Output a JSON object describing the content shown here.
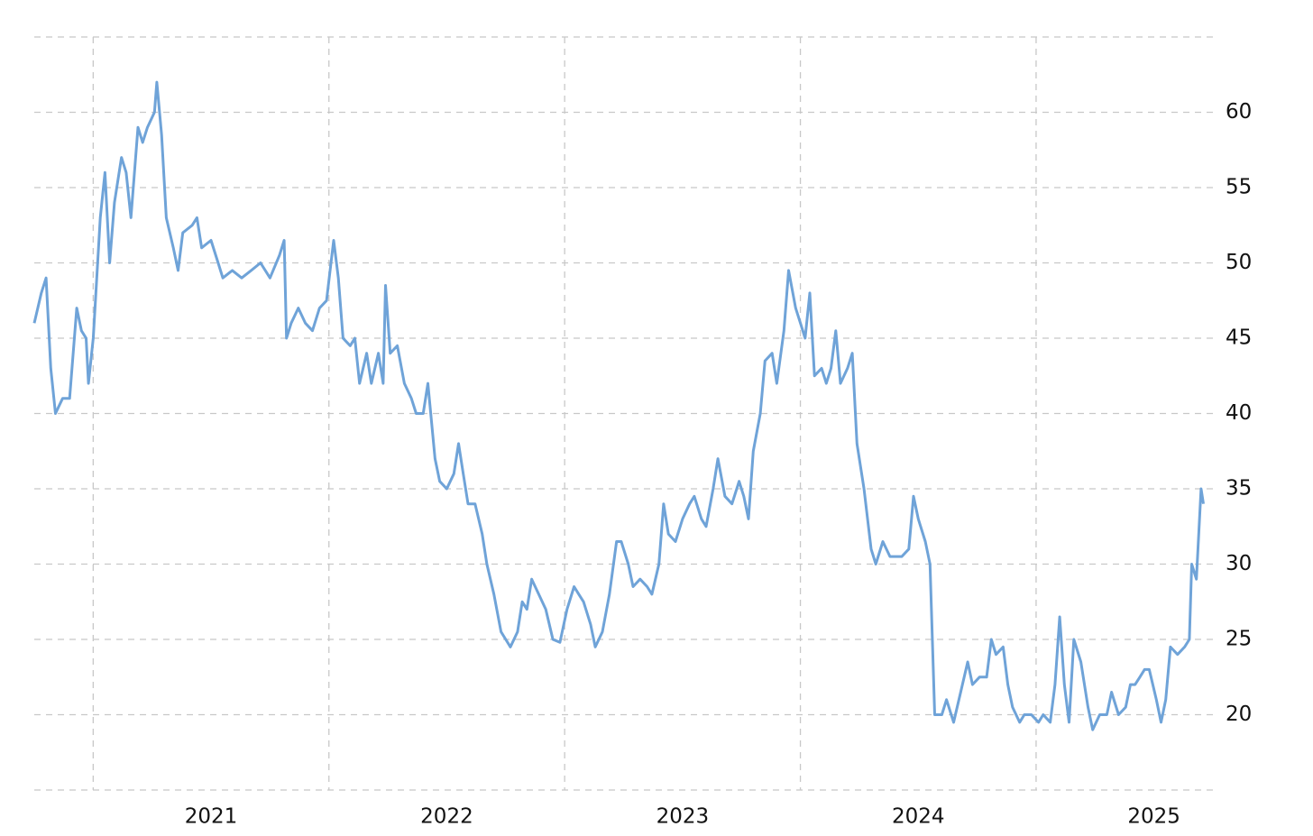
{
  "chart_data": {
    "type": "line",
    "x": [
      2020.75,
      2020.78,
      2020.8,
      2020.82,
      2020.84,
      2020.87,
      2020.9,
      2020.93,
      2020.95,
      2020.97,
      2020.98,
      2021.0,
      2021.03,
      2021.05,
      2021.07,
      2021.09,
      2021.12,
      2021.14,
      2021.16,
      2021.19,
      2021.21,
      2021.23,
      2021.26,
      2021.27,
      2021.29,
      2021.31,
      2021.34,
      2021.36,
      2021.38,
      2021.42,
      2021.44,
      2021.46,
      2021.5,
      2021.53,
      2021.55,
      2021.59,
      2021.63,
      2021.67,
      2021.71,
      2021.75,
      2021.79,
      2021.81,
      2021.82,
      2021.84,
      2021.87,
      2021.9,
      2021.93,
      2021.96,
      2021.99,
      2022.02,
      2022.04,
      2022.06,
      2022.09,
      2022.11,
      2022.13,
      2022.16,
      2022.18,
      2022.21,
      2022.23,
      2022.24,
      2022.26,
      2022.29,
      2022.32,
      2022.35,
      2022.37,
      2022.4,
      2022.42,
      2022.45,
      2022.47,
      2022.5,
      2022.53,
      2022.55,
      2022.57,
      2022.59,
      2022.62,
      2022.65,
      2022.67,
      2022.7,
      2022.73,
      2022.75,
      2022.77,
      2022.8,
      2022.82,
      2022.84,
      2022.86,
      2022.89,
      2022.92,
      2022.95,
      2022.98,
      2023.01,
      2023.04,
      2023.06,
      2023.08,
      2023.11,
      2023.13,
      2023.16,
      2023.19,
      2023.22,
      2023.24,
      2023.27,
      2023.29,
      2023.32,
      2023.35,
      2023.37,
      2023.4,
      2023.42,
      2023.44,
      2023.47,
      2023.5,
      2023.53,
      2023.55,
      2023.58,
      2023.6,
      2023.63,
      2023.65,
      2023.68,
      2023.71,
      2023.74,
      2023.76,
      2023.78,
      2023.8,
      2023.83,
      2023.85,
      2023.88,
      2023.9,
      2023.93,
      2023.95,
      2023.98,
      2024.0,
      2024.02,
      2024.04,
      2024.06,
      2024.09,
      2024.11,
      2024.13,
      2024.15,
      2024.17,
      2024.2,
      2024.22,
      2024.24,
      2024.27,
      2024.3,
      2024.32,
      2024.35,
      2024.38,
      2024.4,
      2024.43,
      2024.46,
      2024.48,
      2024.5,
      2024.53,
      2024.55,
      2024.57,
      2024.6,
      2024.62,
      2024.65,
      2024.68,
      2024.71,
      2024.73,
      2024.76,
      2024.79,
      2024.81,
      2024.83,
      2024.86,
      2024.88,
      2024.9,
      2024.93,
      2024.95,
      2024.98,
      2025.01,
      2025.03,
      2025.06,
      2025.08,
      2025.1,
      2025.12,
      2025.14,
      2025.16,
      2025.19,
      2025.22,
      2025.24,
      2025.27,
      2025.3,
      2025.32,
      2025.35,
      2025.38,
      2025.4,
      2025.42,
      2025.44,
      2025.46,
      2025.48,
      2025.51,
      2025.53,
      2025.55,
      2025.57,
      2025.6,
      2025.63,
      2025.65,
      2025.66,
      2025.68,
      2025.7,
      2025.71
    ],
    "series": [
      {
        "color": "#6fa3d8",
        "values": [
          46,
          48,
          49,
          43,
          40,
          41,
          41,
          47,
          45.5,
          45,
          42,
          45,
          53,
          56,
          50,
          54,
          57,
          56,
          53,
          59,
          58,
          59,
          60,
          62,
          58.5,
          53,
          51,
          49.5,
          52,
          52.5,
          53,
          51,
          51.5,
          50,
          49,
          49.5,
          49,
          49.5,
          50,
          49,
          50.5,
          51.5,
          45,
          46,
          47,
          46,
          45.5,
          47,
          47.5,
          51.5,
          49,
          45,
          44.5,
          45,
          42,
          44,
          42,
          44,
          42,
          48.5,
          44,
          44.5,
          42,
          41,
          40,
          40,
          42,
          37,
          35.5,
          35,
          36,
          38,
          36,
          34,
          34,
          32,
          30,
          28,
          25.5,
          25,
          24.5,
          25.5,
          27.5,
          27,
          29,
          28,
          27,
          25,
          24.8,
          27,
          28.5,
          28,
          27.5,
          26,
          24.5,
          25.5,
          28,
          31.5,
          31.5,
          30,
          28.5,
          29,
          28.5,
          28,
          30,
          34,
          32,
          31.5,
          33,
          34,
          34.5,
          33,
          32.5,
          35,
          37,
          34.5,
          34,
          35.5,
          34.5,
          33,
          37.5,
          40,
          43.5,
          44,
          42,
          45.5,
          49.5,
          47,
          46,
          45,
          48,
          42.5,
          43,
          42,
          43,
          45.5,
          42,
          43,
          44,
          38,
          35,
          31,
          30,
          31.5,
          30.5,
          30.5,
          30.5,
          31,
          34.5,
          33,
          31.5,
          30,
          20,
          20,
          21,
          19.5,
          21.5,
          23.5,
          22,
          22.5,
          22.5,
          25,
          24,
          24.5,
          22,
          20.5,
          19.5,
          20,
          20,
          19.5,
          20,
          19.5,
          22,
          26.5,
          22,
          19.5,
          25,
          23.5,
          20.5,
          19,
          20,
          20,
          21.5,
          20,
          20.5,
          22,
          22,
          22.5,
          23,
          23,
          21,
          19.5,
          21,
          24.5,
          24,
          24.5,
          25,
          30,
          29,
          35,
          34
        ]
      }
    ],
    "xlim": [
      2020.75,
      2025.75
    ],
    "xticks": [
      {
        "value": 2021.5,
        "label": "2021"
      },
      {
        "value": 2022.5,
        "label": "2022"
      },
      {
        "value": 2023.5,
        "label": "2023"
      },
      {
        "value": 2024.5,
        "label": "2024"
      },
      {
        "value": 2025.5,
        "label": "2025"
      }
    ],
    "xgrid": [
      2021,
      2022,
      2023,
      2024,
      2025
    ],
    "ylim": [
      15,
      65
    ],
    "yticks": [
      20,
      25,
      30,
      35,
      40,
      45,
      50,
      55,
      60
    ],
    "grid": true
  }
}
